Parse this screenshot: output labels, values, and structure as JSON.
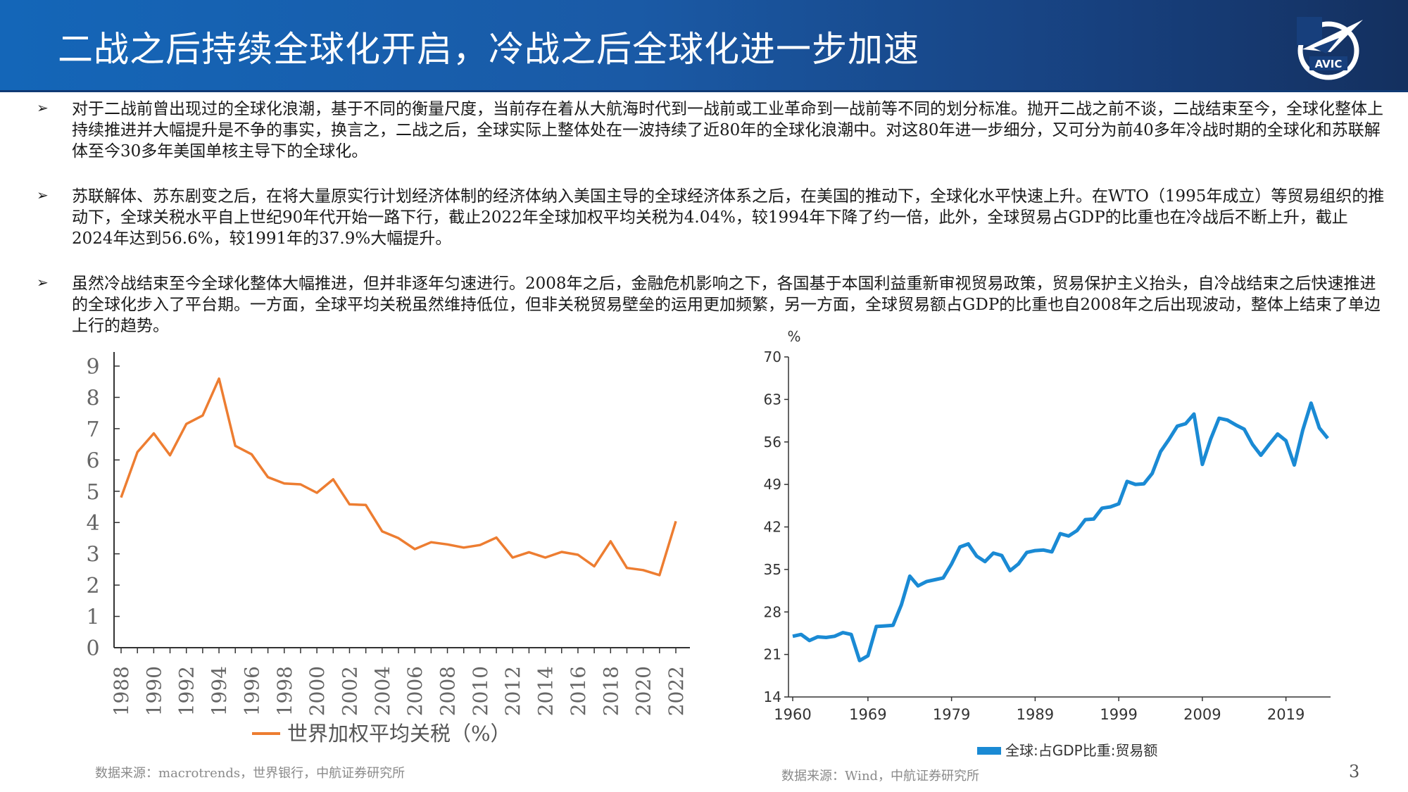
{
  "header": {
    "title": "二战之后持续全球化开启，冷战之后全球化进一步加速",
    "logo_text": "AVIC",
    "logo_icon": "avic-plane-logo"
  },
  "bullets": [
    "对于二战前曾出现过的全球化浪潮，基于不同的衡量尺度，当前存在着从大航海时代到一战前或工业革命到一战前等不同的划分标准。抛开二战之前不谈，二战结束至今，全球化整体上持续推进并大幅提升是不争的事实，换言之，二战之后，全球实际上整体处在一波持续了近80年的全球化浪潮中。对这80年进一步细分，又可分为前40多年冷战时期的全球化和苏联解体至今30多年美国单核主导下的全球化。",
    "苏联解体、苏东剧变之后，在将大量原实行计划经济体制的经济体纳入美国主导的全球经济体系之后，在美国的推动下，全球化水平快速上升。在WTO（1995年成立）等贸易组织的推动下，全球关税水平自上世纪90年代开始一路下行，截止2022年全球加权平均关税为4.04%，较1994年下降了约一倍，此外，全球贸易占GDP的比重也在冷战后不断上升，截止2024年达到56.6%，较1991年的37.9%大幅提升。",
    "虽然冷战结束至今全球化整体大幅推进，但并非逐年匀速进行。2008年之后，金融危机影响之下，各国基于本国利益重新审视贸易政策，贸易保护主义抬头，自冷战结束之后快速推进的全球化步入了平台期。一方面，全球平均关税虽然维持低位，但非关税贸易壁垒的运用更加频繁，另一方面，全球贸易额占GDP的比重也自2008年之后出现波动，整体上结束了单边上行的趋势。"
  ],
  "bullet_marker": "➢",
  "chart_data": [
    {
      "type": "line",
      "color": "#ed7d31",
      "x": [
        1988,
        1989,
        1990,
        1991,
        1992,
        1993,
        1994,
        1995,
        1996,
        1997,
        1998,
        1999,
        2000,
        2001,
        2002,
        2003,
        2004,
        2005,
        2006,
        2007,
        2008,
        2009,
        2010,
        2011,
        2012,
        2013,
        2014,
        2015,
        2016,
        2017,
        2018,
        2019,
        2020,
        2021,
        2022
      ],
      "series": [
        {
          "name": "世界加权平均关税（%）",
          "values": [
            4.8,
            6.25,
            6.85,
            6.15,
            7.15,
            7.42,
            8.6,
            6.45,
            6.18,
            5.45,
            5.25,
            5.22,
            4.95,
            5.38,
            4.58,
            4.56,
            3.72,
            3.5,
            3.15,
            3.37,
            3.3,
            3.2,
            3.28,
            3.52,
            2.88,
            3.05,
            2.88,
            3.06,
            2.97,
            2.6,
            3.4,
            2.55,
            2.48,
            2.32,
            4.04
          ]
        }
      ],
      "xticks": [
        "1988",
        "1990",
        "1992",
        "1994",
        "1996",
        "1998",
        "2000",
        "2002",
        "2004",
        "2006",
        "2008",
        "2010",
        "2012",
        "2014",
        "2016",
        "2018",
        "2020",
        "2022"
      ],
      "yticks": [
        "0",
        "1",
        "2",
        "3",
        "4",
        "5",
        "6",
        "7",
        "8",
        "9"
      ],
      "ylim": [
        0,
        9
      ],
      "legend_position": "bottom",
      "source": "数据来源：macrotrends，世界银行，中航证券研究所"
    },
    {
      "type": "line",
      "color": "#1a8ad4",
      "x": [
        1960,
        1961,
        1962,
        1963,
        1964,
        1965,
        1966,
        1967,
        1968,
        1969,
        1970,
        1971,
        1972,
        1973,
        1974,
        1975,
        1976,
        1977,
        1978,
        1979,
        1980,
        1981,
        1982,
        1983,
        1984,
        1985,
        1986,
        1987,
        1988,
        1989,
        1990,
        1991,
        1992,
        1993,
        1994,
        1995,
        1996,
        1997,
        1998,
        1999,
        2000,
        2001,
        2002,
        2003,
        2004,
        2005,
        2006,
        2007,
        2008,
        2009,
        2010,
        2011,
        2012,
        2013,
        2014,
        2015,
        2016,
        2017,
        2018,
        2019,
        2020,
        2021,
        2022,
        2023,
        2024
      ],
      "series": [
        {
          "name": "全球:占GDP比重:贸易额",
          "values": [
            24.0,
            24.3,
            23.3,
            23.9,
            23.8,
            24.0,
            24.6,
            24.3,
            20.0,
            20.8,
            25.6,
            25.7,
            25.8,
            29.2,
            33.9,
            32.3,
            33.0,
            33.3,
            33.6,
            35.9,
            38.7,
            39.2,
            37.2,
            36.3,
            37.7,
            37.3,
            34.8,
            35.9,
            37.8,
            38.1,
            38.2,
            37.9,
            40.9,
            40.5,
            41.4,
            43.2,
            43.3,
            45.1,
            45.3,
            45.8,
            49.5,
            49.0,
            49.1,
            50.8,
            54.4,
            56.4,
            58.6,
            59.0,
            60.6,
            52.3,
            56.5,
            59.9,
            59.6,
            58.8,
            58.1,
            55.6,
            53.8,
            55.6,
            57.3,
            56.2,
            52.2,
            57.9,
            62.4,
            58.3,
            56.6
          ]
        }
      ],
      "xticks": [
        "1960",
        "1969",
        "1979",
        "1989",
        "1999",
        "2009",
        "2019"
      ],
      "yticks": [
        "14",
        "21",
        "28",
        "35",
        "42",
        "49",
        "56",
        "63",
        "70"
      ],
      "ylim": [
        14,
        70
      ],
      "yunit": "%",
      "legend_position": "bottom",
      "source": "数据来源：Wind，中航证券研究所"
    }
  ],
  "page_number": "3"
}
